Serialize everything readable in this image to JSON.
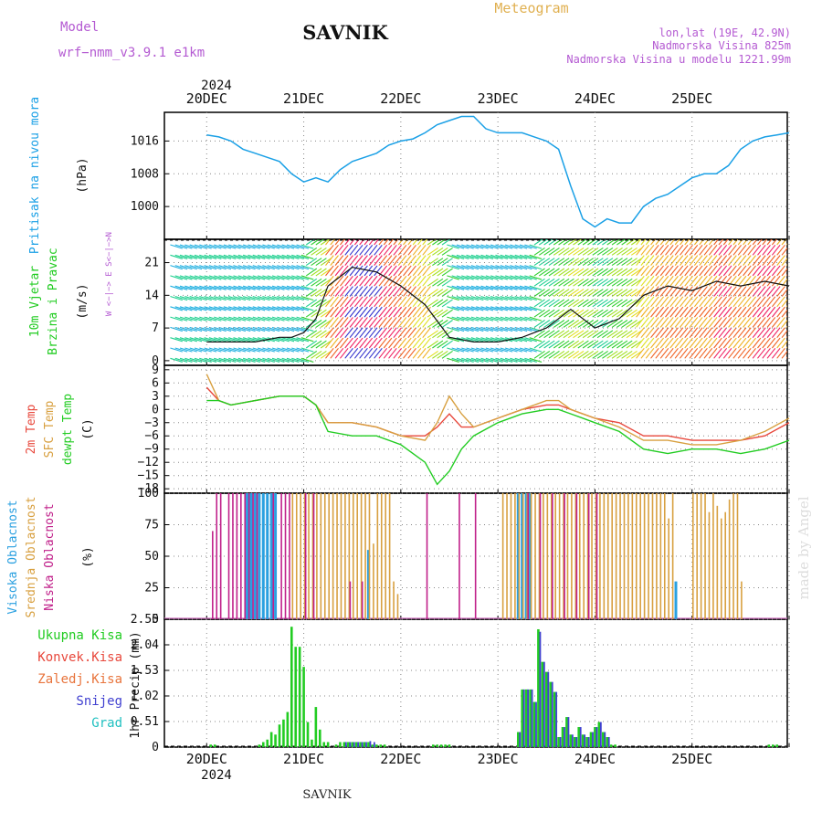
{
  "header": {
    "model_label": "Model",
    "model_name": "wrf−nmm_v3.9.1  e1km",
    "station": "SAVNIK",
    "title": "Meteogram",
    "lonlat": "lon,lat (19E, 42.9N)",
    "altitude": "Nadmorska Visina 825m",
    "model_altitude": "Nadmorska Visina u modelu 1221.99m"
  },
  "footer": {
    "station": "SAVNIK",
    "credit": "made by Angel"
  },
  "colors": {
    "pressure": "#1aa0e6",
    "temp2m": "#e8483c",
    "sfc": "#d8a040",
    "dewpt": "#22cc22",
    "high_cloud": "#2aa0e0",
    "mid_cloud": "#d8a040",
    "low_cloud": "#c0208a",
    "total": "#22cc22",
    "conv": "#e8483c",
    "freezing": "#e8743c",
    "snow": "#4040d0",
    "hail": "#20c0c0",
    "label_purple": "#b45ad2",
    "label_orange": "#e0b050"
  },
  "time_axis": {
    "year": "2024",
    "days": [
      "20DEC",
      "21DEC",
      "22DEC",
      "23DEC",
      "24DEC",
      "25DEC"
    ]
  },
  "chart_data": [
    {
      "type": "line",
      "name": "pressure",
      "ylabel": "Pritisak na nivou mora",
      "unit": "(hPa)",
      "yticks": [
        "1016",
        "1008",
        "1000"
      ],
      "ylim": [
        992,
        1023
      ],
      "x_hours": [
        0,
        3,
        6,
        9,
        12,
        15,
        18,
        21,
        24,
        27,
        30,
        33,
        36,
        39,
        42,
        45,
        48,
        51,
        54,
        57,
        60,
        63,
        66,
        69,
        72,
        75,
        78,
        81,
        84,
        87,
        90,
        93,
        96,
        99,
        102,
        105,
        108,
        111,
        114,
        117,
        120,
        123,
        126,
        129,
        132,
        135,
        138,
        141,
        144
      ],
      "values": [
        1017.5,
        1017,
        1016,
        1014,
        1013,
        1012,
        1011,
        1008,
        1006,
        1007,
        1006,
        1009,
        1011,
        1012,
        1013,
        1015,
        1016,
        1016.5,
        1018,
        1020,
        1021,
        1022,
        1022,
        1019,
        1018,
        1018,
        1018,
        1017,
        1016,
        1014,
        1005,
        997,
        995,
        997,
        996,
        996,
        1000,
        1002,
        1003,
        1005,
        1007,
        1008,
        1008,
        1010,
        1014,
        1016,
        1017,
        1017.5,
        1018
      ]
    },
    {
      "type": "line",
      "name": "wind",
      "ylabel": "10m Vjetar Brzina i Pravac",
      "unit": "(m/s)",
      "direction_key": "W <−|−> E  S<−|−>N",
      "yticks": [
        "21",
        "14",
        "7",
        "0"
      ],
      "ylim": [
        -1,
        26
      ],
      "x_hours": [
        0,
        6,
        12,
        18,
        21,
        24,
        27,
        30,
        36,
        42,
        48,
        54,
        60,
        66,
        72,
        78,
        84,
        90,
        96,
        102,
        108,
        114,
        120,
        126,
        132,
        138,
        144
      ],
      "values": [
        4,
        4,
        4,
        5,
        5,
        6,
        9,
        16,
        20,
        19,
        16,
        12,
        5,
        4,
        4,
        5,
        7,
        11,
        7,
        9,
        14,
        16,
        15,
        17,
        16,
        17,
        16
      ]
    },
    {
      "type": "line",
      "name": "temperature",
      "ylabel": "2m Temp SFC Temp dewpt Temp",
      "unit": "(C)",
      "yticks": [
        "9",
        "6",
        "3",
        "0",
        "−3",
        "−6",
        "−9",
        "−12",
        "−15",
        "−18"
      ],
      "ylim": [
        -19,
        10
      ],
      "series": [
        {
          "name": "2m Temp",
          "x_hours": [
            0,
            3,
            6,
            12,
            18,
            24,
            27,
            30,
            36,
            42,
            48,
            54,
            57,
            60,
            63,
            66,
            72,
            78,
            84,
            87,
            90,
            96,
            102,
            108,
            114,
            120,
            126,
            132,
            138,
            144
          ],
          "values": [
            5,
            2,
            1,
            2,
            3,
            3,
            1,
            -3,
            -3,
            -4,
            -6,
            -6,
            -4,
            -1,
            -4,
            -4,
            -2,
            0,
            1,
            1,
            0,
            -2,
            -3,
            -6,
            -6,
            -7,
            -7,
            -7,
            -6,
            -3
          ]
        },
        {
          "name": "SFC Temp",
          "x_hours": [
            0,
            3,
            6,
            12,
            18,
            24,
            27,
            30,
            36,
            42,
            48,
            54,
            57,
            60,
            63,
            66,
            72,
            78,
            84,
            87,
            90,
            96,
            102,
            108,
            114,
            120,
            126,
            132,
            138,
            144
          ],
          "values": [
            8,
            2,
            1,
            2,
            3,
            3,
            1,
            -3,
            -3,
            -4,
            -6,
            -7,
            -3,
            3,
            -1,
            -4,
            -2,
            0,
            2,
            2,
            0,
            -2,
            -4,
            -7,
            -7,
            -8,
            -8,
            -7,
            -5,
            -2
          ]
        },
        {
          "name": "dewpt Temp",
          "x_hours": [
            0,
            3,
            6,
            12,
            18,
            24,
            27,
            30,
            36,
            42,
            48,
            54,
            57,
            60,
            63,
            66,
            72,
            78,
            84,
            87,
            90,
            96,
            102,
            108,
            114,
            120,
            126,
            132,
            138,
            144
          ],
          "values": [
            2,
            2,
            1,
            2,
            3,
            3,
            1,
            -5,
            -6,
            -6,
            -8,
            -12,
            -17,
            -14,
            -9,
            -6,
            -3,
            -1,
            0,
            0,
            -1,
            -3,
            -5,
            -9,
            -10,
            -9,
            -9,
            -10,
            -9,
            -7
          ]
        }
      ]
    },
    {
      "type": "bar",
      "name": "cloud",
      "ylabel": "Visoka Oblacnost Srednja Oblacnost Niska Oblacnost",
      "unit": "(%)",
      "yticks": [
        "100",
        "75",
        "50",
        "25",
        "0"
      ],
      "ylim": [
        0,
        100
      ],
      "series": [
        {
          "name": "Visoka Oblacnost",
          "x_hours": [
            10,
            11,
            12,
            13,
            14,
            15,
            16,
            17,
            40,
            77,
            78,
            79,
            80,
            116
          ],
          "values": [
            100,
            100,
            100,
            100,
            100,
            100,
            100,
            100,
            55,
            100,
            100,
            100,
            100,
            30
          ]
        },
        {
          "name": "Srednja Oblacnost",
          "x_hours": [
            21,
            22,
            23,
            24,
            25,
            26,
            27,
            28,
            29,
            30,
            31,
            32,
            33,
            34,
            35,
            36,
            37,
            38,
            39,
            40,
            41,
            42,
            43,
            44,
            45,
            46,
            47,
            73,
            74,
            75,
            76,
            77,
            78,
            79,
            80,
            81,
            82,
            83,
            84,
            85,
            86,
            87,
            88,
            89,
            90,
            91,
            92,
            93,
            94,
            95,
            96,
            97,
            98,
            99,
            100,
            101,
            102,
            103,
            104,
            105,
            106,
            107,
            108,
            109,
            110,
            111,
            112,
            113,
            114,
            115,
            120,
            121,
            122,
            123,
            124,
            125,
            126,
            127,
            128,
            129,
            130,
            131,
            132
          ],
          "values": [
            100,
            100,
            100,
            100,
            100,
            100,
            100,
            100,
            100,
            100,
            100,
            100,
            100,
            100,
            100,
            100,
            100,
            100,
            100,
            100,
            60,
            100,
            100,
            100,
            100,
            30,
            20,
            100,
            100,
            100,
            100,
            100,
            100,
            100,
            100,
            100,
            100,
            100,
            100,
            100,
            100,
            100,
            100,
            100,
            100,
            100,
            100,
            100,
            100,
            100,
            100,
            100,
            100,
            100,
            100,
            100,
            100,
            100,
            100,
            100,
            100,
            100,
            100,
            100,
            100,
            100,
            100,
            100,
            80,
            100,
            100,
            100,
            100,
            100,
            85,
            100,
            90,
            80,
            85,
            95,
            100,
            100,
            30
          ]
        },
        {
          "name": "Niska Oblacnost",
          "x_hours": [
            1,
            2,
            3,
            5,
            6,
            7,
            8,
            9,
            10,
            11,
            12,
            16,
            18,
            19,
            20,
            24,
            26,
            35,
            38,
            54,
            62,
            66,
            79,
            82,
            85,
            88,
            91,
            94,
            96
          ],
          "values": [
            70,
            100,
            100,
            100,
            100,
            100,
            100,
            100,
            100,
            100,
            100,
            100,
            100,
            100,
            100,
            100,
            100,
            30,
            30,
            100,
            100,
            100,
            100,
            100,
            100,
            100,
            100,
            100,
            100
          ]
        }
      ]
    },
    {
      "type": "bar",
      "name": "precip",
      "ylabel": "1hr Precip (mm)",
      "yticks": [
        "2.55",
        "2.04",
        "1.53",
        "1.02",
        "0.51",
        "0"
      ],
      "ylim": [
        0,
        2.55
      ],
      "legend": [
        "Ukupna Kisa",
        "Konvek.Kisa",
        "Zaledj.Kisa",
        "Snijeg",
        "Grad"
      ],
      "series": [
        {
          "name": "Ukupna Kisa",
          "x_hours": [
            1,
            2,
            13,
            14,
            15,
            16,
            17,
            18,
            19,
            20,
            21,
            22,
            23,
            24,
            25,
            26,
            27,
            28,
            29,
            30,
            32,
            33,
            34,
            35,
            36,
            37,
            38,
            39,
            40,
            41,
            42,
            43,
            44,
            56,
            57,
            58,
            59,
            60,
            77,
            78,
            79,
            80,
            81,
            82,
            83,
            84,
            85,
            86,
            87,
            88,
            89,
            90,
            91,
            92,
            93,
            94,
            95,
            96,
            97,
            98,
            99,
            100,
            101,
            139,
            140,
            141
          ],
          "values": [
            0.05,
            0.05,
            0.05,
            0.1,
            0.15,
            0.3,
            0.25,
            0.45,
            0.55,
            0.7,
            2.4,
            2.0,
            2.0,
            1.6,
            0.5,
            0.15,
            0.8,
            0.35,
            0.1,
            0.1,
            0.05,
            0.1,
            0.1,
            0.1,
            0.1,
            0.1,
            0.1,
            0.1,
            0.1,
            0.05,
            0.05,
            0.05,
            0.05,
            0.05,
            0.05,
            0.05,
            0.05,
            0.05,
            0.3,
            1.15,
            1.15,
            1.15,
            0.9,
            2.35,
            1.7,
            1.5,
            1.3,
            1.1,
            0.2,
            0.4,
            0.6,
            0.25,
            0.2,
            0.4,
            0.25,
            0.2,
            0.3,
            0.4,
            0.5,
            0.3,
            0.2,
            0.05,
            0.05,
            0.05,
            0.05,
            0.05
          ]
        },
        {
          "name": "Snijeg",
          "x_hours": [
            34,
            35,
            36,
            37,
            38,
            39,
            40,
            41,
            77,
            78,
            79,
            80,
            81,
            82,
            83,
            84,
            85,
            86,
            87,
            88,
            89,
            90,
            91,
            92,
            93,
            94,
            95,
            96,
            97,
            98,
            99
          ],
          "values": [
            0.1,
            0.1,
            0.1,
            0.1,
            0.1,
            0.1,
            0.12,
            0.1,
            0.3,
            1.15,
            1.15,
            1.15,
            0.9,
            2.3,
            1.7,
            1.5,
            1.3,
            1.1,
            0.2,
            0.4,
            0.6,
            0.25,
            0.2,
            0.4,
            0.25,
            0.2,
            0.3,
            0.4,
            0.5,
            0.3,
            0.2
          ]
        }
      ]
    }
  ]
}
